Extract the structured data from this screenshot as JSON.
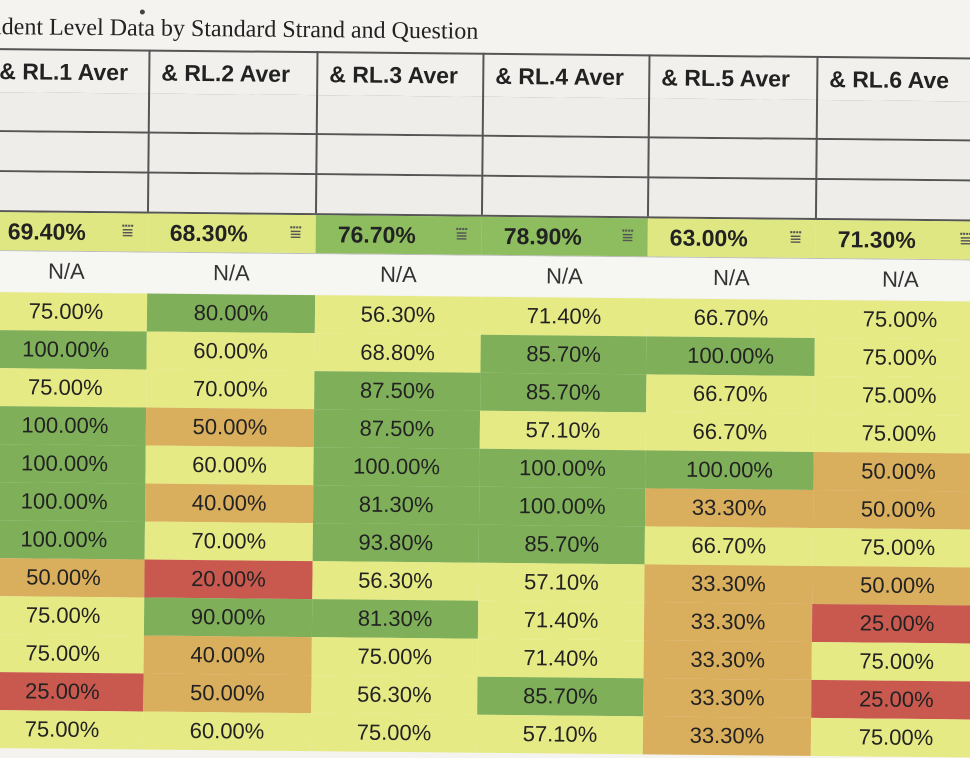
{
  "sheet_title": "udent Level Data by Standard Strand and Question",
  "headers": [
    "& RL.1 Aver",
    "& RL.2 Aver",
    "& RL.3 Aver",
    "& RL.4 Aver",
    "& RL.5 Aver",
    "& RL.6 Ave"
  ],
  "averages": [
    "69.40%",
    "68.30%",
    "76.70%",
    "78.90%",
    "63.00%",
    "71.30%"
  ],
  "filter_glyph": "⩸",
  "na_row": [
    "N/A",
    "N/A",
    "N/A",
    "N/A",
    "N/A",
    "N/A"
  ],
  "rows": [
    [
      "75.00%",
      "80.00%",
      "56.30%",
      "71.40%",
      "66.70%",
      "75.00%"
    ],
    [
      "100.00%",
      "60.00%",
      "68.80%",
      "85.70%",
      "100.00%",
      "75.00%"
    ],
    [
      "75.00%",
      "70.00%",
      "87.50%",
      "85.70%",
      "66.70%",
      "75.00%"
    ],
    [
      "100.00%",
      "50.00%",
      "87.50%",
      "57.10%",
      "66.70%",
      "75.00%"
    ],
    [
      "100.00%",
      "60.00%",
      "100.00%",
      "100.00%",
      "100.00%",
      "50.00%"
    ],
    [
      "100.00%",
      "40.00%",
      "81.30%",
      "100.00%",
      "33.30%",
      "50.00%"
    ],
    [
      "100.00%",
      "70.00%",
      "93.80%",
      "85.70%",
      "66.70%",
      "75.00%"
    ],
    [
      "50.00%",
      "20.00%",
      "56.30%",
      "57.10%",
      "33.30%",
      "50.00%"
    ],
    [
      "75.00%",
      "90.00%",
      "81.30%",
      "71.40%",
      "33.30%",
      "25.00%"
    ],
    [
      "75.00%",
      "40.00%",
      "75.00%",
      "71.40%",
      "33.30%",
      "75.00%"
    ],
    [
      "25.00%",
      "50.00%",
      "56.30%",
      "85.70%",
      "33.30%",
      "25.00%"
    ],
    [
      "75.00%",
      "60.00%",
      "75.00%",
      "57.10%",
      "33.30%",
      "75.00%"
    ]
  ],
  "colors": {
    "green": "#7fb059",
    "light_green": "#bcd76a",
    "yellow": "#e6ea84",
    "orange": "#d9ae5c",
    "red": "#c9594f",
    "avg_yellow": "#dfe782",
    "avg_green": "#8ebd5f"
  }
}
